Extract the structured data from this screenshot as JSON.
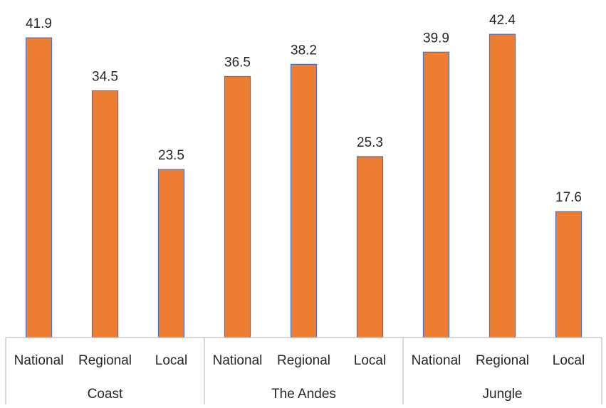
{
  "chart_data": {
    "type": "bar",
    "title": "",
    "xlabel": "",
    "ylabel": "",
    "ylim": [
      0,
      46
    ],
    "grid": false,
    "legend": "none",
    "bar_color": "#ED7D31",
    "bar_border_color": "#4472C4",
    "axis_color": "#BFBFBF",
    "text_color": "#262626",
    "groups": [
      {
        "label": "Coast",
        "categories": [
          "National",
          "Regional",
          "Local"
        ],
        "values": [
          41.9,
          34.5,
          23.5
        ],
        "value_labels": [
          "41.9",
          "34.5",
          "23.5"
        ]
      },
      {
        "label": "The Andes",
        "categories": [
          "National",
          "Regional",
          "Local"
        ],
        "values": [
          36.5,
          38.2,
          25.3
        ],
        "value_labels": [
          "36.5",
          "38.2",
          "25.3"
        ]
      },
      {
        "label": "Jungle",
        "categories": [
          "National",
          "Regional",
          "Local"
        ],
        "values": [
          39.9,
          42.4,
          17.6
        ],
        "value_labels": [
          "39.9",
          "42.4",
          "17.6"
        ]
      }
    ]
  }
}
